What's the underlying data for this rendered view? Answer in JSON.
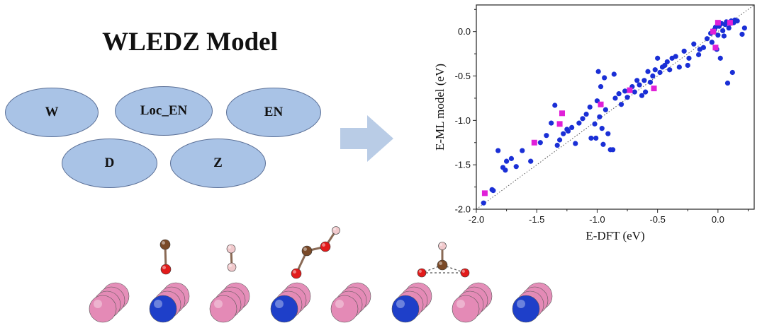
{
  "model": {
    "title": "WLEDZ Model",
    "features": [
      "W",
      "Loc_EN",
      "EN",
      "D",
      "Z"
    ]
  },
  "arrow": {
    "color": "#b9cce6"
  },
  "chart_data": {
    "type": "scatter",
    "xlabel": "E-DFT (eV)",
    "ylabel": "E-ML model (eV)",
    "xlim": [
      -2.0,
      0.3
    ],
    "ylim": [
      -2.0,
      0.3
    ],
    "xticks": [
      "-2.0",
      "-1.5",
      "-1.0",
      "-0.5",
      "0.0"
    ],
    "yticks": [
      "-2.0",
      "-1.5",
      "-1.0",
      "-0.5",
      "0.0"
    ],
    "xtick_values": [
      -2.0,
      -1.5,
      -1.0,
      -0.5,
      0.0
    ],
    "ytick_values": [
      -2.0,
      -1.5,
      -1.0,
      -0.5,
      0.0
    ],
    "reference_line": "y = x (dotted)",
    "series": [
      {
        "marker": "circle",
        "color": "#1a2fd6",
        "points": [
          [
            -1.94,
            -1.93
          ],
          [
            -1.87,
            -1.78
          ],
          [
            -1.86,
            -1.79
          ],
          [
            -1.82,
            -1.34
          ],
          [
            -1.78,
            -1.53
          ],
          [
            -1.76,
            -1.56
          ],
          [
            -1.75,
            -1.46
          ],
          [
            -1.71,
            -1.43
          ],
          [
            -1.67,
            -1.52
          ],
          [
            -1.62,
            -1.34
          ],
          [
            -1.55,
            -1.46
          ],
          [
            -1.47,
            -1.25
          ],
          [
            -1.42,
            -1.17
          ],
          [
            -1.38,
            -1.03
          ],
          [
            -1.35,
            -0.83
          ],
          [
            -1.33,
            -1.28
          ],
          [
            -1.31,
            -1.22
          ],
          [
            -1.28,
            -1.15
          ],
          [
            -1.24,
            -1.12
          ],
          [
            -1.21,
            -1.08
          ],
          [
            -1.18,
            -1.26
          ],
          [
            -1.15,
            -1.03
          ],
          [
            -1.12,
            -0.98
          ],
          [
            -1.09,
            -0.93
          ],
          [
            -1.06,
            -0.85
          ],
          [
            -1.02,
            -1.04
          ],
          [
            -1.01,
            -1.2
          ],
          [
            -1.0,
            -0.78
          ],
          [
            -0.99,
            -0.45
          ],
          [
            -0.98,
            -0.96
          ],
          [
            -0.97,
            -0.62
          ],
          [
            -0.96,
            -1.09
          ],
          [
            -0.95,
            -1.27
          ],
          [
            -0.94,
            -0.52
          ],
          [
            -0.93,
            -0.88
          ],
          [
            -0.91,
            -1.15
          ],
          [
            -0.89,
            -1.33
          ],
          [
            -0.87,
            -1.33
          ],
          [
            -0.86,
            -0.48
          ],
          [
            -0.85,
            -0.75
          ],
          [
            -0.82,
            -0.7
          ],
          [
            -0.8,
            -0.82
          ],
          [
            -0.77,
            -0.67
          ],
          [
            -0.75,
            -0.74
          ],
          [
            -0.73,
            -0.66
          ],
          [
            -0.71,
            -0.62
          ],
          [
            -0.69,
            -0.68
          ],
          [
            -0.67,
            -0.55
          ],
          [
            -0.65,
            -0.6
          ],
          [
            -0.63,
            -0.72
          ],
          [
            -0.61,
            -0.55
          ],
          [
            -0.58,
            -0.45
          ],
          [
            -0.56,
            -0.57
          ],
          [
            -0.54,
            -0.5
          ],
          [
            -0.52,
            -0.43
          ],
          [
            -0.5,
            -0.3
          ],
          [
            -0.48,
            -0.46
          ],
          [
            -0.46,
            -0.4
          ],
          [
            -0.44,
            -0.38
          ],
          [
            -0.42,
            -0.34
          ],
          [
            -0.4,
            -0.43
          ],
          [
            -0.38,
            -0.3
          ],
          [
            -0.35,
            -0.28
          ],
          [
            -0.32,
            -0.4
          ],
          [
            -0.28,
            -0.22
          ],
          [
            -0.24,
            -0.3
          ],
          [
            -0.2,
            -0.14
          ],
          [
            -0.16,
            -0.26
          ],
          [
            -0.12,
            -0.18
          ],
          [
            -0.09,
            -0.08
          ],
          [
            -0.06,
            -0.02
          ],
          [
            -0.05,
            -0.12
          ],
          [
            -0.03,
            0.02
          ],
          [
            -0.02,
            0.05
          ],
          [
            -0.01,
            -0.2
          ],
          [
            0.0,
            -0.04
          ],
          [
            0.01,
            0.06
          ],
          [
            0.02,
            -0.3
          ],
          [
            0.03,
            0.09
          ],
          [
            0.04,
            0.01
          ],
          [
            0.05,
            -0.05
          ],
          [
            0.06,
            0.08
          ],
          [
            0.07,
            0.11
          ],
          [
            0.08,
            -0.58
          ],
          [
            0.09,
            0.04
          ],
          [
            0.1,
            0.09
          ],
          [
            0.11,
            0.12
          ],
          [
            0.12,
            -0.46
          ],
          [
            0.13,
            0.1
          ],
          [
            0.14,
            0.13
          ],
          [
            0.16,
            0.12
          ],
          [
            0.2,
            -0.03
          ],
          [
            0.22,
            0.04
          ],
          [
            -0.25,
            -0.38
          ],
          [
            -0.15,
            -0.2
          ],
          [
            -0.6,
            -0.68
          ],
          [
            -1.05,
            -1.2
          ],
          [
            -1.25,
            -1.1
          ]
        ]
      },
      {
        "marker": "square",
        "color": "#e020d8",
        "points": [
          [
            -1.93,
            -1.82
          ],
          [
            -1.52,
            -1.25
          ],
          [
            -1.31,
            -1.04
          ],
          [
            -1.29,
            -0.92
          ],
          [
            -0.97,
            -0.82
          ],
          [
            -0.73,
            -0.66
          ],
          [
            -0.53,
            -0.64
          ],
          [
            -0.04,
            0.0
          ],
          [
            -0.02,
            -0.18
          ],
          [
            0.0,
            0.1
          ],
          [
            0.1,
            0.1
          ]
        ]
      }
    ]
  },
  "molecules": {
    "colors": {
      "carbon": "#7a4a28",
      "oxygen": "#e21b1b",
      "hydrogen": "#f1c9cc"
    }
  },
  "surface": {
    "colors": {
      "host": "#e48ab6",
      "dopant": "#1e3fc9"
    },
    "pattern": [
      "host",
      "dopant",
      "host",
      "dopant",
      "host",
      "dopant",
      "host",
      "dopant"
    ]
  }
}
